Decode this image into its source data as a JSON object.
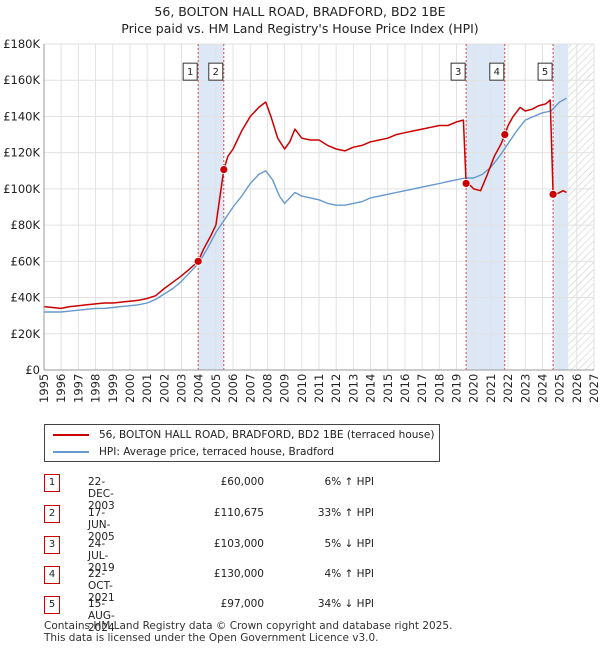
{
  "title_line1": "56, BOLTON HALL ROAD, BRADFORD, BD2 1BE",
  "title_line2": "Price paid vs. HM Land Registry's House Price Index (HPI)",
  "chart_data": {
    "type": "line",
    "title": "56, BOLTON HALL ROAD, BRADFORD, BD2 1BE — Price paid vs. HM Land Registry's House Price Index (HPI)",
    "xlim": [
      1995,
      2027
    ],
    "ylim": [
      0,
      180000
    ],
    "x_ticks": [
      1995,
      1996,
      1997,
      1998,
      1999,
      2000,
      2001,
      2002,
      2003,
      2004,
      2005,
      2006,
      2007,
      2008,
      2009,
      2010,
      2011,
      2012,
      2013,
      2014,
      2015,
      2016,
      2017,
      2018,
      2019,
      2020,
      2021,
      2022,
      2023,
      2024,
      2025,
      2026,
      2027
    ],
    "y_ticks": [
      {
        "value": 0,
        "label": "£0"
      },
      {
        "value": 20000,
        "label": "£20K"
      },
      {
        "value": 40000,
        "label": "£40K"
      },
      {
        "value": 60000,
        "label": "£60K"
      },
      {
        "value": 80000,
        "label": "£80K"
      },
      {
        "value": 100000,
        "label": "£100K"
      },
      {
        "value": 120000,
        "label": "£120K"
      },
      {
        "value": 140000,
        "label": "£140K"
      },
      {
        "value": 160000,
        "label": "£160K"
      },
      {
        "value": 180000,
        "label": "£180K"
      }
    ],
    "grid": true,
    "shaded_periods": [
      [
        2003.97,
        2005.46
      ],
      [
        2019.56,
        2021.81
      ],
      [
        2024.62,
        2025.5
      ]
    ],
    "future_hatch_from": 2025.5,
    "colors": {
      "price": "#cc0000",
      "hpi": "#6699cc",
      "shade": "#dde8f6",
      "grid": "#e2e2e2"
    },
    "series": [
      {
        "name": "price",
        "label": "56, BOLTON HALL ROAD, BRADFORD, BD2 1BE (terraced house)",
        "x": [
          1995.0,
          1995.5,
          1996.0,
          1996.5,
          1997.0,
          1997.5,
          1998.0,
          1998.5,
          1999.0,
          1999.5,
          2000.0,
          2000.5,
          2001.0,
          2001.5,
          2002.0,
          2002.5,
          2003.0,
          2003.5,
          2003.97,
          2004.3,
          2004.7,
          2005.0,
          2005.46,
          2005.7,
          2006.0,
          2006.5,
          2007.0,
          2007.5,
          2007.9,
          2008.2,
          2008.6,
          2009.0,
          2009.3,
          2009.6,
          2010.0,
          2010.5,
          2011.0,
          2011.5,
          2012.0,
          2012.5,
          2013.0,
          2013.5,
          2014.0,
          2014.5,
          2015.0,
          2015.5,
          2016.0,
          2016.5,
          2017.0,
          2017.5,
          2018.0,
          2018.5,
          2019.0,
          2019.4,
          2019.56,
          2019.8,
          2020.0,
          2020.4,
          2020.8,
          2021.2,
          2021.6,
          2021.81,
          2022.0,
          2022.3,
          2022.7,
          2023.0,
          2023.4,
          2023.8,
          2024.2,
          2024.45,
          2024.62,
          2024.9,
          2025.2,
          2025.4
        ],
        "values": [
          35000,
          34500,
          34000,
          35000,
          35500,
          36000,
          36500,
          37000,
          37000,
          37500,
          38000,
          38500,
          39500,
          41000,
          45000,
          48500,
          52000,
          56000,
          60000,
          67000,
          74000,
          80000,
          110675,
          118000,
          122000,
          132000,
          140000,
          145000,
          148000,
          140000,
          128000,
          122000,
          126000,
          133000,
          128000,
          127000,
          127000,
          124000,
          122000,
          121000,
          123000,
          124000,
          126000,
          127000,
          128000,
          130000,
          131000,
          132000,
          133000,
          134000,
          135000,
          135000,
          137000,
          138000,
          103000,
          102000,
          100000,
          99000,
          108000,
          118000,
          125000,
          130000,
          135000,
          140000,
          145000,
          143000,
          144000,
          146000,
          147000,
          149000,
          97000,
          97500,
          99000,
          98000
        ]
      },
      {
        "name": "hpi",
        "label": "HPI: Average price, terraced house, Bradford",
        "x": [
          1995.0,
          1995.5,
          1996.0,
          1996.5,
          1997.0,
          1997.5,
          1998.0,
          1998.5,
          1999.0,
          1999.5,
          2000.0,
          2000.5,
          2001.0,
          2001.5,
          2002.0,
          2002.5,
          2003.0,
          2003.5,
          2004.0,
          2004.5,
          2005.0,
          2005.5,
          2006.0,
          2006.5,
          2007.0,
          2007.5,
          2007.9,
          2008.3,
          2008.7,
          2009.0,
          2009.3,
          2009.6,
          2010.0,
          2010.5,
          2011.0,
          2011.5,
          2012.0,
          2012.5,
          2013.0,
          2013.5,
          2014.0,
          2014.5,
          2015.0,
          2015.5,
          2016.0,
          2016.5,
          2017.0,
          2017.5,
          2018.0,
          2018.5,
          2019.0,
          2019.5,
          2020.0,
          2020.5,
          2021.0,
          2021.5,
          2022.0,
          2022.5,
          2023.0,
          2023.5,
          2024.0,
          2024.5,
          2025.0,
          2025.4
        ],
        "values": [
          32000,
          32000,
          32000,
          32500,
          33000,
          33500,
          34000,
          34000,
          34500,
          35000,
          35500,
          36000,
          37000,
          39000,
          42000,
          45000,
          49000,
          54000,
          59000,
          67000,
          76000,
          83000,
          90000,
          96000,
          103000,
          108000,
          110000,
          105000,
          96000,
          92000,
          95000,
          98000,
          96000,
          95000,
          94000,
          92000,
          91000,
          91000,
          92000,
          93000,
          95000,
          96000,
          97000,
          98000,
          99000,
          100000,
          101000,
          102000,
          103000,
          104000,
          105000,
          106000,
          106000,
          108000,
          112000,
          118000,
          125000,
          132000,
          138000,
          140000,
          142000,
          143000,
          148000,
          150000
        ]
      }
    ],
    "sales": [
      {
        "id": "1",
        "date": "22-DEC-2003",
        "x": 2003.97,
        "price": 60000,
        "price_label": "£60,000",
        "hpi_diff": "6% ↑ HPI"
      },
      {
        "id": "2",
        "date": "17-JUN-2005",
        "x": 2005.46,
        "price": 110675,
        "price_label": "£110,675",
        "hpi_diff": "33% ↑ HPI"
      },
      {
        "id": "3",
        "date": "24-JUL-2019",
        "x": 2019.56,
        "price": 103000,
        "price_label": "£103,000",
        "hpi_diff": "5% ↓ HPI"
      },
      {
        "id": "4",
        "date": "22-OCT-2021",
        "x": 2021.81,
        "price": 130000,
        "price_label": "£130,000",
        "hpi_diff": "4% ↑ HPI"
      },
      {
        "id": "5",
        "date": "15-AUG-2024",
        "x": 2024.62,
        "price": 97000,
        "price_label": "£97,000",
        "hpi_diff": "34% ↓ HPI"
      }
    ],
    "marker_label_value": 165000
  },
  "legend": {
    "price_label": "56, BOLTON HALL ROAD, BRADFORD, BD2 1BE (terraced house)",
    "hpi_label": "HPI: Average price, terraced house, Bradford"
  },
  "footer_line1": "Contains HM Land Registry data © Crown copyright and database right 2025.",
  "footer_line2": "This data is licensed under the Open Government Licence v3.0."
}
